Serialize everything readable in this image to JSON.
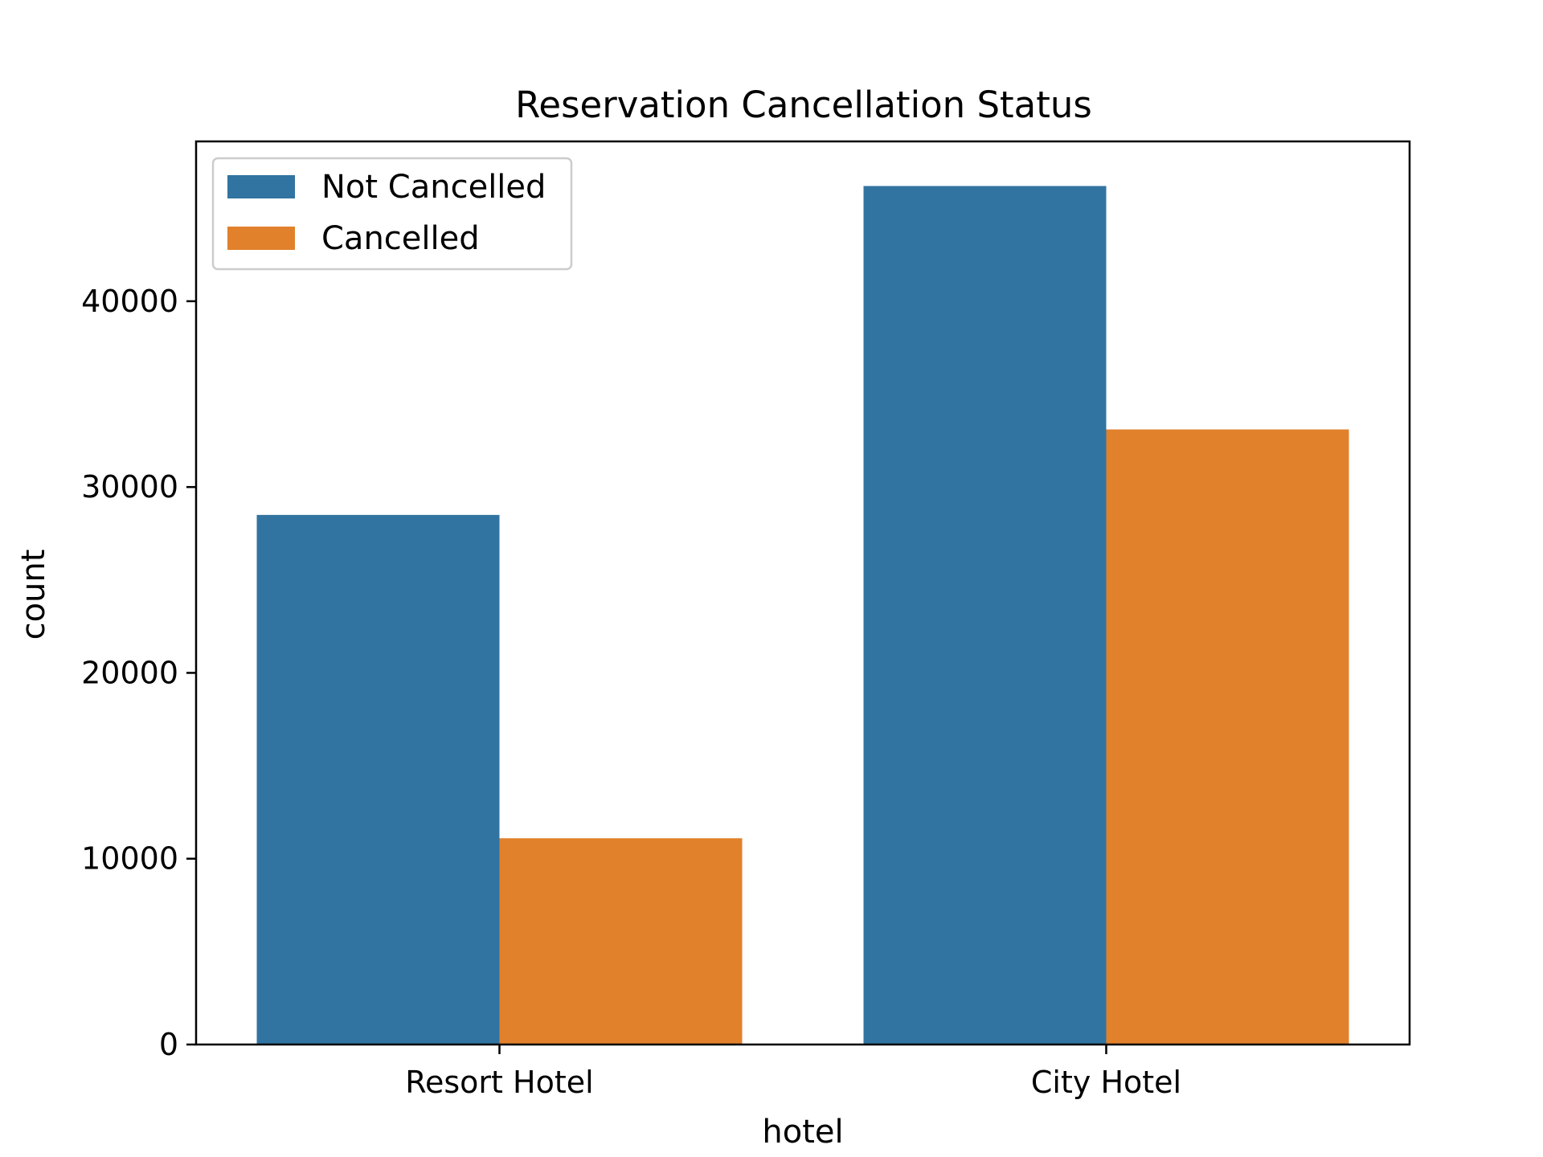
{
  "chart_data": {
    "type": "bar",
    "title": "Reservation Cancellation Status",
    "xlabel": "hotel",
    "ylabel": "count",
    "categories": [
      "Resort Hotel",
      "City Hotel"
    ],
    "series": [
      {
        "name": "Not Cancelled",
        "values": [
          28500,
          46200
        ],
        "color": "#3274a1"
      },
      {
        "name": "Cancelled",
        "values": [
          11100,
          33100
        ],
        "color": "#e1812c"
      }
    ],
    "ylim": [
      0,
      48600
    ],
    "yticks": [
      0,
      10000,
      20000,
      30000,
      40000
    ],
    "ytick_labels": [
      "0",
      "10000",
      "20000",
      "30000",
      "40000"
    ],
    "grid": false,
    "legend_position": "top-left"
  }
}
